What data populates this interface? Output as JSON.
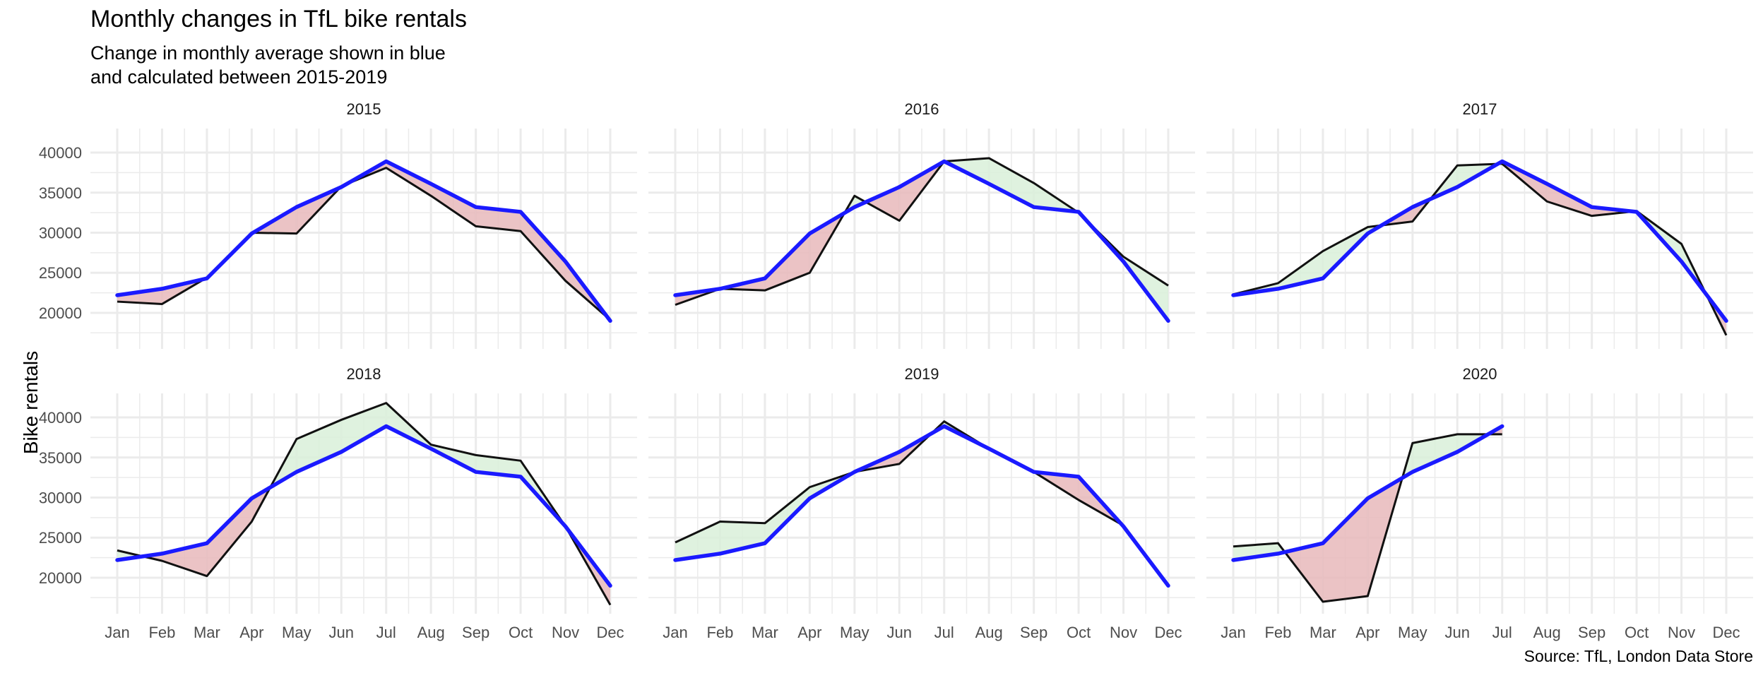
{
  "title": "Monthly changes in TfL bike rentals",
  "subtitle": "Change in monthly average shown in blue\nand calculated between 2015-2019",
  "caption": "Source: TfL, London Data Store",
  "colors": {
    "average": "#1a1aff",
    "actual": "#111111",
    "above": "#d9f0d9",
    "below": "#e7b9bb",
    "grid": "#ebebeb",
    "axis_text": "#4d4d4d"
  },
  "chart_data": {
    "type": "line",
    "title": "Monthly changes in TfL bike rentals",
    "ylabel": "Bike rentals",
    "xlabel": "",
    "ylim": [
      15500,
      43000
    ],
    "yticks": [
      20000,
      25000,
      30000,
      35000,
      40000
    ],
    "grid": true,
    "legend": "none",
    "x": [
      "Jan",
      "Feb",
      "Mar",
      "Apr",
      "May",
      "Jun",
      "Jul",
      "Aug",
      "Sep",
      "Oct",
      "Nov",
      "Dec"
    ],
    "average": [
      22200,
      23000,
      24300,
      29900,
      33200,
      35700,
      38900,
      36100,
      33200,
      32600,
      26400,
      19000
    ],
    "panels": [
      {
        "name": "2015",
        "values": [
          21400,
          21100,
          24400,
          30000,
          29900,
          35800,
          38100,
          34600,
          30800,
          30200,
          24000,
          19100
        ]
      },
      {
        "name": "2016",
        "values": [
          21000,
          23000,
          22800,
          25000,
          34600,
          31500,
          38900,
          39300,
          36200,
          32500,
          27000,
          23400
        ]
      },
      {
        "name": "2017",
        "values": [
          22300,
          23700,
          27700,
          30700,
          31400,
          38400,
          38600,
          33900,
          32100,
          32700,
          28600,
          17200
        ]
      },
      {
        "name": "2018",
        "values": [
          23400,
          22100,
          20200,
          27000,
          37300,
          39700,
          41800,
          36600,
          35300,
          34600,
          26400,
          16600
        ]
      },
      {
        "name": "2019",
        "values": [
          24400,
          27000,
          26800,
          31300,
          33200,
          34200,
          39500,
          36100,
          33200,
          29700,
          26500,
          19100
        ]
      },
      {
        "name": "2020",
        "values": [
          23900,
          24300,
          17000,
          17700,
          36800,
          37900,
          37900
        ]
      }
    ]
  }
}
